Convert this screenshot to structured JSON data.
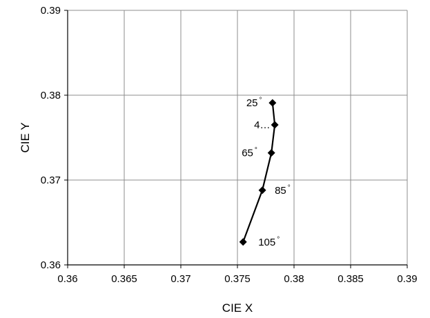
{
  "chart_data": {
    "type": "scatter",
    "xlabel": "CIE X",
    "ylabel": "CIE Y",
    "xlim": [
      0.36,
      0.39
    ],
    "ylim": [
      0.36,
      0.39
    ],
    "x_ticks": [
      "0.36",
      "0.365",
      "0.37",
      "0.375",
      "0.38",
      "0.385",
      "0.39"
    ],
    "y_ticks": [
      "0.36",
      "0.37",
      "0.38",
      "0.39"
    ],
    "grid": true,
    "series": [
      {
        "color": "#000000",
        "marker": "diamond",
        "line": true,
        "points": [
          {
            "x": 0.3781,
            "y": 0.3791,
            "label": "25",
            "label_suffix": "°"
          },
          {
            "x": 0.3783,
            "y": 0.3765,
            "label": "4…",
            "label_suffix": ""
          },
          {
            "x": 0.378,
            "y": 0.3732,
            "label": "65",
            "label_suffix": "°"
          },
          {
            "x": 0.3772,
            "y": 0.3688,
            "label": "85",
            "label_suffix": "°"
          },
          {
            "x": 0.3755,
            "y": 0.3627,
            "label": "105",
            "label_suffix": "°"
          }
        ]
      }
    ]
  }
}
